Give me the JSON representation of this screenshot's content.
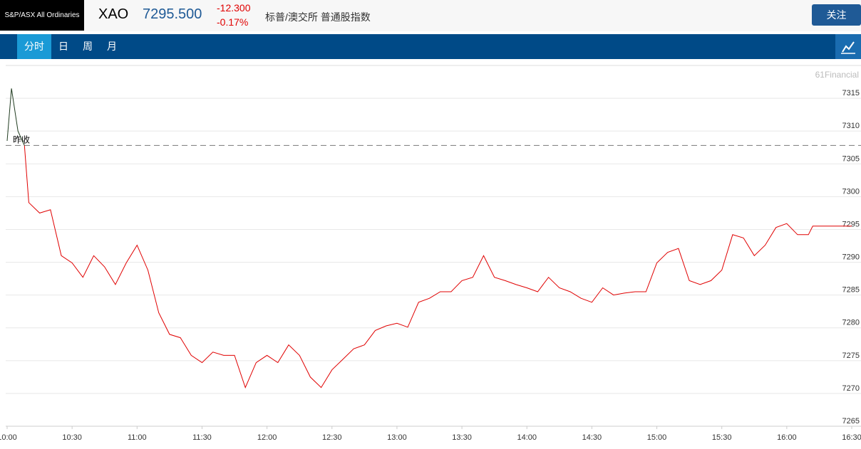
{
  "header": {
    "index_name": "S&P/ASX All Ordinaries",
    "symbol": "XAO",
    "price": "7295.500",
    "change": "-12.300",
    "change_pct": "-0.17%",
    "description": "标普/澳交所 普通股指数",
    "follow_button": "关注"
  },
  "tabs": [
    "分时",
    "日",
    "周",
    "月"
  ],
  "chart_data": {
    "type": "line",
    "watermark": "61Financial",
    "prev_close_label": "昨收",
    "prev_close": 7307.8,
    "x": [
      "10:00",
      "10:02",
      "10:05",
      "10:08",
      "10:10",
      "10:15",
      "10:20",
      "10:25",
      "10:30",
      "10:35",
      "10:40",
      "10:45",
      "10:50",
      "10:55",
      "11:00",
      "11:05",
      "11:10",
      "11:15",
      "11:20",
      "11:25",
      "11:30",
      "11:35",
      "11:40",
      "11:45",
      "11:50",
      "11:55",
      "12:00",
      "12:05",
      "12:10",
      "12:15",
      "12:20",
      "12:25",
      "12:30",
      "12:35",
      "12:40",
      "12:45",
      "12:50",
      "12:55",
      "13:00",
      "13:05",
      "13:10",
      "13:15",
      "13:20",
      "13:25",
      "13:30",
      "13:35",
      "13:40",
      "13:45",
      "13:50",
      "13:55",
      "14:00",
      "14:05",
      "14:10",
      "14:15",
      "14:20",
      "14:25",
      "14:30",
      "14:35",
      "14:40",
      "14:45",
      "14:50",
      "14:55",
      "15:00",
      "15:05",
      "15:10",
      "15:15",
      "15:20",
      "15:25",
      "15:30",
      "15:35",
      "15:40",
      "15:45",
      "15:50",
      "15:55",
      "16:00",
      "16:05",
      "16:10",
      "16:12",
      "16:30"
    ],
    "values": [
      7308.5,
      7316.5,
      7310,
      7307.8,
      7299.1,
      7297.5,
      7298,
      7291,
      7289.9,
      7287.7,
      7291,
      7289.3,
      7286.6,
      7289.9,
      7292.6,
      7288.8,
      7282.3,
      7279,
      7278.5,
      7275.8,
      7274.7,
      7276.3,
      7275.8,
      7275.8,
      7270.9,
      7274.7,
      7275.8,
      7274.7,
      7277.4,
      7275.8,
      7272.5,
      7270.9,
      7273.6,
      7275.2,
      7276.8,
      7277.4,
      7279.6,
      7280.3,
      7280.7,
      7280.1,
      7283.9,
      7284.5,
      7285.5,
      7285.5,
      7287.2,
      7287.7,
      7291,
      7287.7,
      7287.2,
      7286.6,
      7286.1,
      7285.5,
      7287.7,
      7286.1,
      7285.5,
      7284.5,
      7283.9,
      7286.1,
      7285,
      7285.3,
      7285.5,
      7285.5,
      7289.9,
      7291.5,
      7292.1,
      7287.2,
      7286.6,
      7287.2,
      7288.8,
      7294.2,
      7293.7,
      7291,
      7292.6,
      7295.3,
      7295.9,
      7294.2,
      7294.2,
      7295.5,
      7295.5
    ],
    "up_color": "#1f3b1f",
    "down_color": "#e00000",
    "xlim": [
      "10:00",
      "16:30"
    ],
    "xticks": [
      "10:00",
      "10:30",
      "11:00",
      "11:30",
      "12:00",
      "12:30",
      "13:00",
      "13:30",
      "14:00",
      "14:30",
      "15:00",
      "15:30",
      "16:00",
      "16:30"
    ],
    "ylim": [
      7265,
      7320
    ],
    "yticks": [
      7265,
      7270,
      7275,
      7280,
      7285,
      7290,
      7295,
      7300,
      7305,
      7310,
      7315
    ],
    "grid": true
  }
}
